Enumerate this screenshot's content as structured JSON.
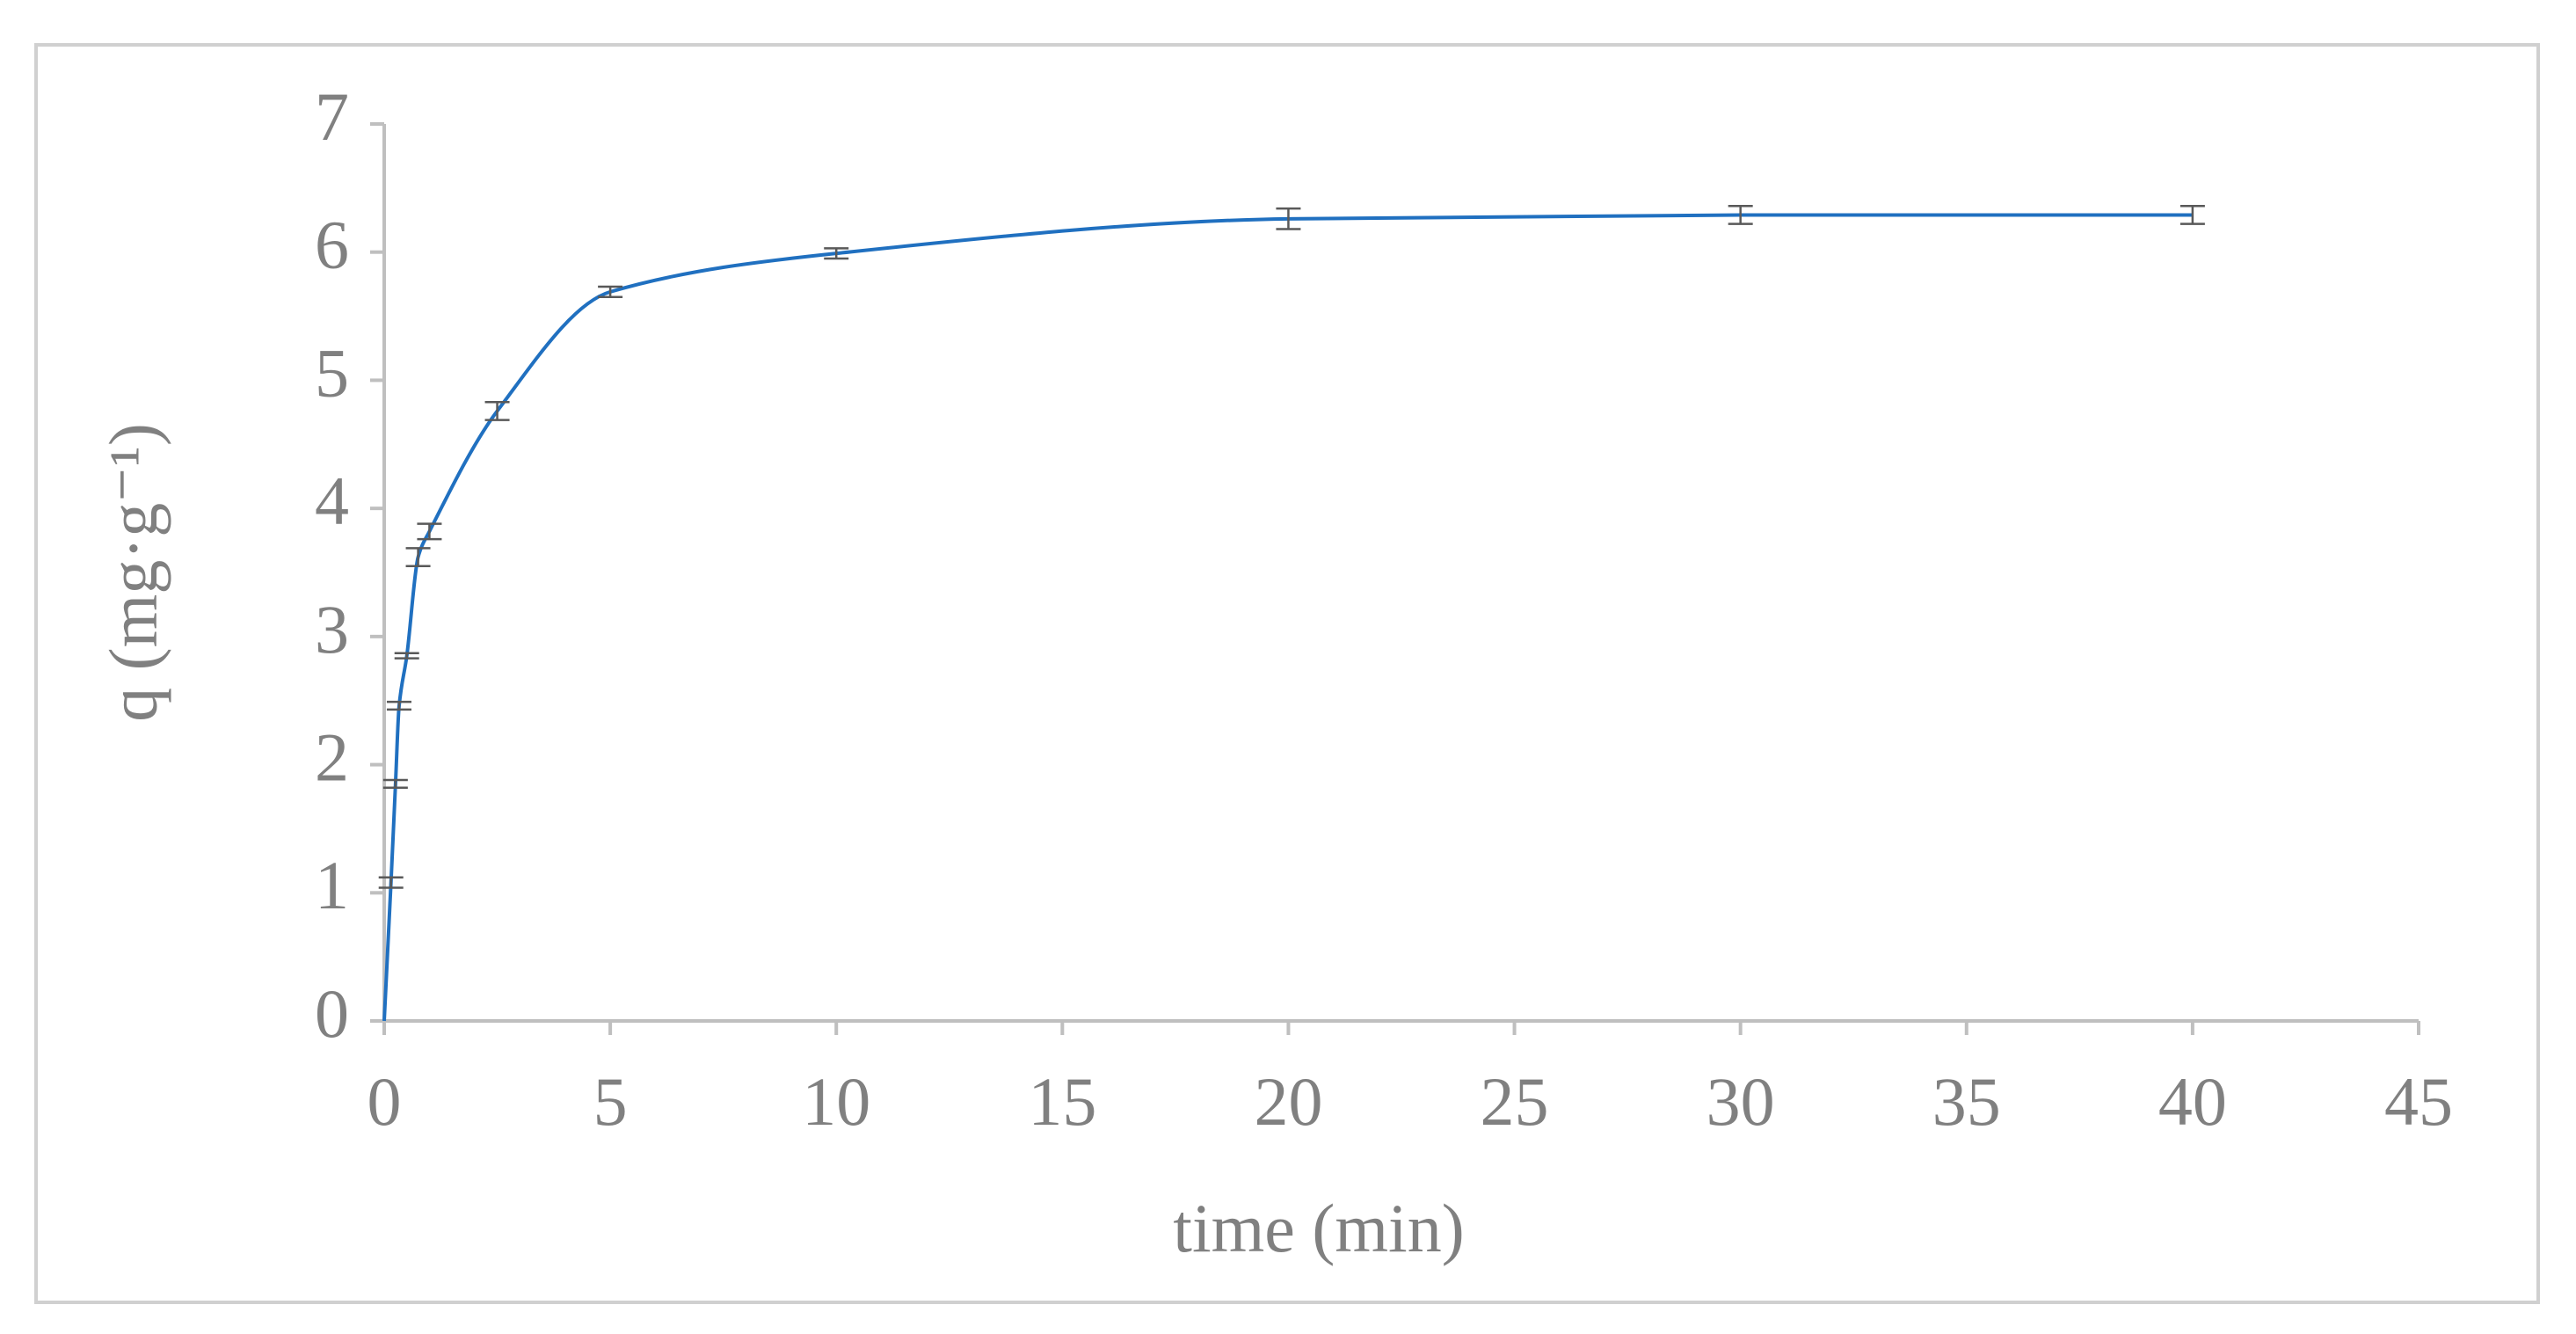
{
  "chart_data": {
    "type": "line",
    "x_label": "time (min)",
    "y_label": "q (mg·g⁻¹)",
    "x": [
      0,
      0.15,
      0.25,
      0.33,
      0.5,
      0.75,
      1,
      2.5,
      5,
      10,
      20,
      30,
      40
    ],
    "series": [
      {
        "color": "#2070c0",
        "values": [
          0,
          1.08,
          1.85,
          2.46,
          2.85,
          3.62,
          3.82,
          4.76,
          5.69,
          5.99,
          6.26,
          6.29,
          6.29
        ],
        "errors": [
          null,
          0.04,
          0.03,
          0.03,
          0.02,
          0.07,
          0.06,
          0.07,
          0.04,
          0.04,
          0.08,
          0.07,
          0.07
        ]
      }
    ],
    "xlim": [
      0,
      45
    ],
    "xticks": [
      0,
      5,
      10,
      15,
      20,
      25,
      30,
      35,
      40,
      45
    ],
    "ylim": [
      0,
      7
    ],
    "yticks": [
      0,
      1,
      2,
      3,
      4,
      5,
      6,
      7
    ],
    "grid": false
  }
}
